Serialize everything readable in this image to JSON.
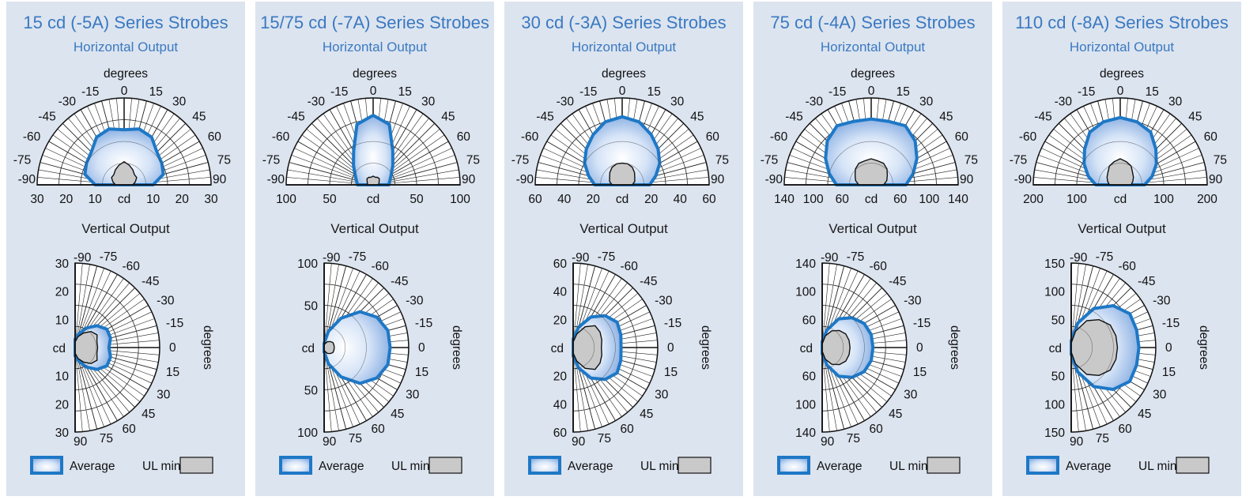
{
  "legend": {
    "average": "Average",
    "ul_min": "UL min"
  },
  "colors": {
    "panel": "#dce4ef",
    "title": "#3a79c1",
    "average_line": "#1e78c6",
    "ul_fill": "#c9c9c9"
  },
  "chart_data": [
    {
      "title": "15 cd (-5A) Series Strobes",
      "horizontal": {
        "type": "polar-semicircle",
        "subtitle": "Horizontal Output",
        "angle_label": "degrees",
        "unit_label": "cd",
        "angle_ticks": [
          "-90",
          "-75",
          "-60",
          "-45",
          "-30",
          "-15",
          "0",
          "15",
          "30",
          "45",
          "60",
          "75",
          "90"
        ],
        "radial_ticks": [
          "30",
          "20",
          "10",
          "10",
          "20",
          "30"
        ],
        "rmax": 30,
        "angles": [
          -90,
          -75,
          -60,
          -45,
          -30,
          -15,
          0,
          15,
          30,
          45,
          60,
          75,
          90
        ],
        "average": [
          10,
          14,
          15,
          16,
          19,
          20,
          19,
          20,
          19,
          16,
          15,
          14,
          10
        ],
        "ul_min": [
          3,
          4,
          5,
          5,
          6,
          7,
          8,
          7,
          6,
          5,
          5,
          4,
          3
        ]
      },
      "vertical": {
        "type": "polar-semicircle",
        "subtitle": "Vertical Output",
        "angle_label": "degrees",
        "unit_label": "cd",
        "angle_ticks": [
          "-90",
          "-75",
          "-60",
          "-45",
          "-30",
          "-15",
          "0",
          "15",
          "30",
          "45",
          "60",
          "75",
          "90"
        ],
        "radial_ticks": [
          "30",
          "20",
          "10",
          "10",
          "20",
          "30"
        ],
        "rmax": 30,
        "angles": [
          -90,
          -75,
          -60,
          -45,
          -30,
          -15,
          0,
          15,
          30,
          45,
          60,
          75,
          90
        ],
        "average": [
          3,
          5,
          8,
          11,
          13,
          13,
          12,
          13,
          13,
          11,
          8,
          5,
          3
        ],
        "ul_min": [
          2,
          4,
          6,
          8,
          9,
          8,
          8,
          8,
          9,
          8,
          6,
          4,
          2
        ]
      }
    },
    {
      "title": "15/75 cd (-7A) Series Strobes",
      "horizontal": {
        "type": "polar-semicircle",
        "subtitle": "Horizontal Output",
        "angle_label": "degrees",
        "unit_label": "cd",
        "angle_ticks": [
          "-90",
          "-75",
          "-60",
          "-45",
          "-30",
          "-15",
          "0",
          "15",
          "30",
          "45",
          "60",
          "75",
          "90"
        ],
        "radial_ticks": [
          "100",
          "50",
          "50",
          "100"
        ],
        "rmax": 100,
        "angles": [
          -90,
          -75,
          -60,
          -45,
          -30,
          -15,
          0,
          15,
          30,
          45,
          60,
          75,
          90
        ],
        "average": [
          18,
          20,
          24,
          32,
          45,
          72,
          80,
          72,
          45,
          32,
          24,
          20,
          18
        ],
        "ul_min": [
          6,
          7,
          8,
          10,
          10,
          9,
          10,
          9,
          10,
          10,
          8,
          7,
          6
        ]
      },
      "vertical": {
        "type": "polar-semicircle",
        "subtitle": "Vertical Output",
        "angle_label": "degrees",
        "unit_label": "cd",
        "angle_ticks": [
          "-90",
          "-75",
          "-60",
          "-45",
          "-30",
          "-15",
          "0",
          "15",
          "30",
          "45",
          "60",
          "75",
          "90"
        ],
        "radial_ticks": [
          "100",
          "50",
          "50",
          "100"
        ],
        "rmax": 100,
        "angles": [
          -90,
          -75,
          -60,
          -45,
          -30,
          -15,
          0,
          15,
          30,
          45,
          60,
          75,
          90
        ],
        "average": [
          5,
          20,
          40,
          60,
          72,
          78,
          78,
          78,
          72,
          60,
          40,
          20,
          5
        ],
        "ul_min": [
          3,
          5,
          8,
          10,
          12,
          12,
          12,
          12,
          12,
          10,
          8,
          5,
          3
        ]
      }
    },
    {
      "title": "30 cd (-3A) Series Strobes",
      "horizontal": {
        "type": "polar-semicircle",
        "subtitle": "Horizontal Output",
        "angle_label": "degrees",
        "unit_label": "cd",
        "angle_ticks": [
          "-90",
          "-75",
          "-60",
          "-45",
          "-30",
          "-15",
          "0",
          "15",
          "30",
          "45",
          "60",
          "75",
          "90"
        ],
        "radial_ticks": [
          "60",
          "40",
          "20",
          "20",
          "40",
          "60"
        ],
        "rmax": 60,
        "angles": [
          -90,
          -75,
          -60,
          -45,
          -30,
          -15,
          0,
          15,
          30,
          45,
          60,
          75,
          90
        ],
        "average": [
          19,
          24,
          30,
          35,
          40,
          45,
          47,
          45,
          40,
          35,
          30,
          24,
          19
        ],
        "ul_min": [
          7,
          9,
          10,
          12,
          14,
          15,
          15,
          15,
          14,
          12,
          10,
          9,
          7
        ]
      },
      "vertical": {
        "type": "polar-semicircle",
        "subtitle": "Vertical Output",
        "angle_label": "degrees",
        "unit_label": "cd",
        "angle_ticks": [
          "-90",
          "-75",
          "-60",
          "-45",
          "-30",
          "-15",
          "0",
          "15",
          "30",
          "45",
          "60",
          "75",
          "90"
        ],
        "radial_ticks": [
          "60",
          "40",
          "20",
          "20",
          "40",
          "60"
        ],
        "rmax": 60,
        "angles": [
          -90,
          -75,
          -60,
          -45,
          -30,
          -15,
          0,
          15,
          30,
          45,
          60,
          75,
          90
        ],
        "average": [
          6,
          15,
          25,
          32,
          36,
          35,
          34,
          35,
          36,
          32,
          25,
          15,
          6
        ],
        "ul_min": [
          4,
          10,
          17,
          22,
          22,
          21,
          20,
          21,
          22,
          22,
          17,
          10,
          4
        ]
      }
    },
    {
      "title": "75 cd (-4A) Series Strobes",
      "horizontal": {
        "type": "polar-semicircle",
        "subtitle": "Horizontal Output",
        "angle_label": "degrees",
        "unit_label": "cd",
        "angle_ticks": [
          "-90",
          "-75",
          "-60",
          "-45",
          "-30",
          "-15",
          "0",
          "15",
          "30",
          "45",
          "60",
          "75",
          "90"
        ],
        "radial_ticks": [
          "140",
          "100",
          "60",
          "60",
          "100",
          "140"
        ],
        "rmax": 140,
        "angles": [
          -90,
          -75,
          -60,
          -45,
          -30,
          -15,
          0,
          15,
          30,
          45,
          60,
          75,
          90
        ],
        "average": [
          56,
          70,
          85,
          100,
          110,
          106,
          106,
          106,
          110,
          100,
          85,
          70,
          56
        ],
        "ul_min": [
          20,
          26,
          30,
          36,
          40,
          40,
          42,
          40,
          40,
          36,
          30,
          26,
          20
        ]
      },
      "vertical": {
        "type": "polar-semicircle",
        "subtitle": "Vertical Output",
        "angle_label": "degrees",
        "unit_label": "cd",
        "angle_ticks": [
          "-90",
          "-75",
          "-60",
          "-45",
          "-30",
          "-15",
          "0",
          "15",
          "30",
          "45",
          "60",
          "75",
          "90"
        ],
        "radial_ticks": [
          "140",
          "100",
          "60",
          "60",
          "100",
          "140"
        ],
        "rmax": 140,
        "angles": [
          -90,
          -75,
          -60,
          -45,
          -30,
          -15,
          0,
          15,
          30,
          45,
          60,
          75,
          90
        ],
        "average": [
          10,
          30,
          55,
          70,
          80,
          84,
          84,
          84,
          80,
          70,
          55,
          30,
          10
        ],
        "ul_min": [
          6,
          20,
          32,
          40,
          45,
          46,
          46,
          46,
          45,
          40,
          32,
          20,
          6
        ]
      }
    },
    {
      "title": "110 cd (-8A) Series Strobes",
      "horizontal": {
        "type": "polar-semicircle",
        "subtitle": "Horizontal Output",
        "angle_label": "degrees",
        "unit_label": "cd",
        "angle_ticks": [
          "-90",
          "-75",
          "-60",
          "-45",
          "-30",
          "-15",
          "0",
          "15",
          "30",
          "45",
          "60",
          "75",
          "90"
        ],
        "radial_ticks": [
          "200",
          "100",
          "100",
          "200"
        ],
        "rmax": 200,
        "angles": [
          -90,
          -75,
          -60,
          -45,
          -30,
          -15,
          0,
          15,
          30,
          45,
          60,
          75,
          90
        ],
        "average": [
          56,
          76,
          96,
          116,
          140,
          150,
          155,
          150,
          140,
          116,
          96,
          76,
          56
        ],
        "ul_min": [
          25,
          30,
          35,
          40,
          50,
          55,
          60,
          55,
          50,
          40,
          35,
          30,
          25
        ]
      },
      "vertical": {
        "type": "polar-semicircle",
        "subtitle": "Vertical Output",
        "angle_label": "degrees",
        "unit_label": "cd",
        "angle_ticks": [
          "-90",
          "-75",
          "-60",
          "-45",
          "-30",
          "-15",
          "0",
          "15",
          "30",
          "45",
          "60",
          "75",
          "90"
        ],
        "radial_ticks": [
          "150",
          "100",
          "50",
          "50",
          "100",
          "150"
        ],
        "rmax": 150,
        "angles": [
          -90,
          -75,
          -60,
          -45,
          -30,
          -15,
          0,
          15,
          30,
          45,
          60,
          75,
          90
        ],
        "average": [
          12,
          45,
          80,
          105,
          120,
          120,
          120,
          120,
          120,
          105,
          80,
          45,
          12
        ],
        "ul_min": [
          8,
          30,
          55,
          70,
          80,
          82,
          82,
          82,
          80,
          70,
          55,
          30,
          8
        ]
      }
    }
  ]
}
